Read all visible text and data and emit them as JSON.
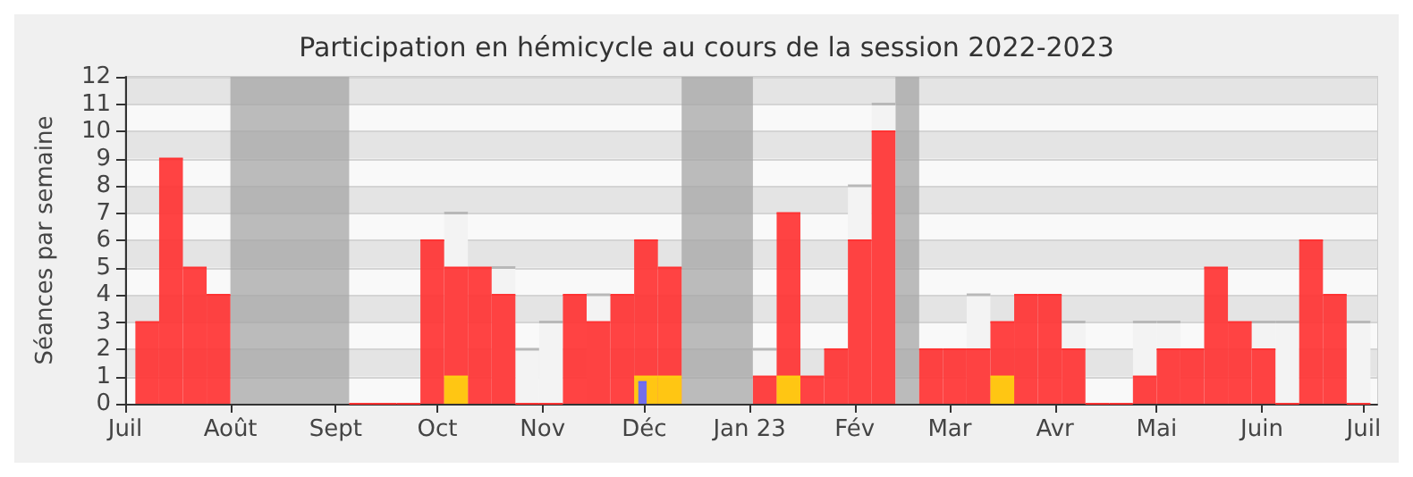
{
  "chart_data": {
    "type": "bar",
    "title": "Participation en hémicycle au cours de la session 2022-2023",
    "ylabel": "Séances par semaine",
    "x": [
      "2022-07-04",
      "2022-07-11",
      "2022-07-18",
      "2022-07-25",
      "2022-08-01",
      "2022-08-08",
      "2022-08-15",
      "2022-08-22",
      "2022-08-29",
      "2022-09-05",
      "2022-09-12",
      "2022-09-19",
      "2022-09-26",
      "2022-10-03",
      "2022-10-10",
      "2022-10-17",
      "2022-10-24",
      "2022-10-31",
      "2022-11-07",
      "2022-11-14",
      "2022-11-21",
      "2022-11-28",
      "2022-12-05",
      "2022-12-12",
      "2022-12-19",
      "2022-12-26",
      "2023-01-02",
      "2023-01-09",
      "2023-01-16",
      "2023-01-23",
      "2023-01-30",
      "2023-02-06",
      "2023-02-13",
      "2023-02-20",
      "2023-02-27",
      "2023-03-06",
      "2023-03-13",
      "2023-03-20",
      "2023-03-27",
      "2023-04-03",
      "2023-04-10",
      "2023-04-17",
      "2023-04-24",
      "2023-05-01",
      "2023-05-08",
      "2023-05-15",
      "2023-05-22",
      "2023-05-29",
      "2023-06-05",
      "2023-06-12",
      "2023-06-19",
      "2023-06-26"
    ],
    "series": [
      {
        "color": "#f3f3f3",
        "values": [
          null,
          null,
          null,
          null,
          null,
          null,
          null,
          null,
          null,
          null,
          null,
          null,
          null,
          7,
          null,
          5,
          2,
          3,
          null,
          4,
          null,
          null,
          null,
          null,
          null,
          null,
          2,
          null,
          null,
          null,
          8,
          11,
          null,
          null,
          null,
          4,
          null,
          null,
          null,
          3,
          null,
          null,
          3,
          3,
          null,
          null,
          null,
          3,
          3,
          null,
          null,
          3
        ]
      },
      {
        "color": "#ff3333",
        "values": [
          3,
          9,
          5,
          4,
          null,
          null,
          null,
          null,
          null,
          0,
          0,
          0,
          6,
          5,
          5,
          4,
          0,
          0,
          4,
          3,
          4,
          6,
          5,
          null,
          null,
          null,
          1,
          7,
          1,
          2,
          6,
          10,
          null,
          2,
          2,
          2,
          3,
          4,
          4,
          2,
          0,
          0,
          1,
          2,
          2,
          5,
          3,
          2,
          0,
          6,
          4,
          0
        ]
      },
      {
        "color": "#ffd10f",
        "values": [
          null,
          null,
          null,
          null,
          null,
          null,
          null,
          null,
          null,
          null,
          null,
          null,
          null,
          1,
          null,
          null,
          null,
          null,
          null,
          null,
          null,
          1,
          1,
          null,
          null,
          null,
          null,
          1,
          null,
          null,
          null,
          null,
          null,
          null,
          null,
          null,
          1,
          null,
          null,
          null,
          null,
          null,
          null,
          null,
          null,
          null,
          null,
          null,
          null,
          null,
          null,
          null
        ]
      },
      {
        "color": "#6666ff",
        "values": [
          null,
          null,
          null,
          null,
          null,
          null,
          null,
          null,
          null,
          null,
          null,
          null,
          null,
          null,
          null,
          null,
          null,
          null,
          null,
          null,
          null,
          0.8,
          null,
          null,
          null,
          null,
          null,
          null,
          null,
          null,
          null,
          null,
          null,
          null,
          null,
          null,
          null,
          null,
          null,
          null,
          null,
          null,
          null,
          null,
          null,
          null,
          null,
          null,
          null,
          null,
          null,
          null
        ]
      }
    ],
    "bands": [
      {
        "axis": "x",
        "from": "2022-08-01",
        "to": "2022-09-05",
        "color": "#a6a6a6"
      },
      {
        "axis": "x",
        "from": "2022-12-12",
        "to": "2023-01-02",
        "color": "#a6a6a6"
      },
      {
        "axis": "x",
        "from": "2023-02-13",
        "to": "2023-02-20",
        "color": "#a6a6a6"
      }
    ],
    "xlim": [
      "2022-07-01",
      "2023-07-05"
    ],
    "xticks": [
      {
        "value": "2022-07-01",
        "label": "Juil"
      },
      {
        "value": "2022-08-01",
        "label": "Août"
      },
      {
        "value": "2022-09-01",
        "label": "Sept"
      },
      {
        "value": "2022-10-01",
        "label": "Oct"
      },
      {
        "value": "2022-11-01",
        "label": "Nov"
      },
      {
        "value": "2022-12-01",
        "label": "Déc"
      },
      {
        "value": "2023-01-01",
        "label": "Jan 23"
      },
      {
        "value": "2023-02-01",
        "label": "Fév"
      },
      {
        "value": "2023-03-01",
        "label": "Mar"
      },
      {
        "value": "2023-04-01",
        "label": "Avr"
      },
      {
        "value": "2023-05-01",
        "label": "Mai"
      },
      {
        "value": "2023-06-01",
        "label": "Juin"
      },
      {
        "value": "2023-07-01",
        "label": "Juil"
      }
    ],
    "ylim": [
      0,
      12
    ],
    "yticks": [
      0,
      1,
      2,
      3,
      4,
      5,
      6,
      7,
      8,
      9,
      10,
      11,
      12
    ],
    "grid": "y"
  }
}
